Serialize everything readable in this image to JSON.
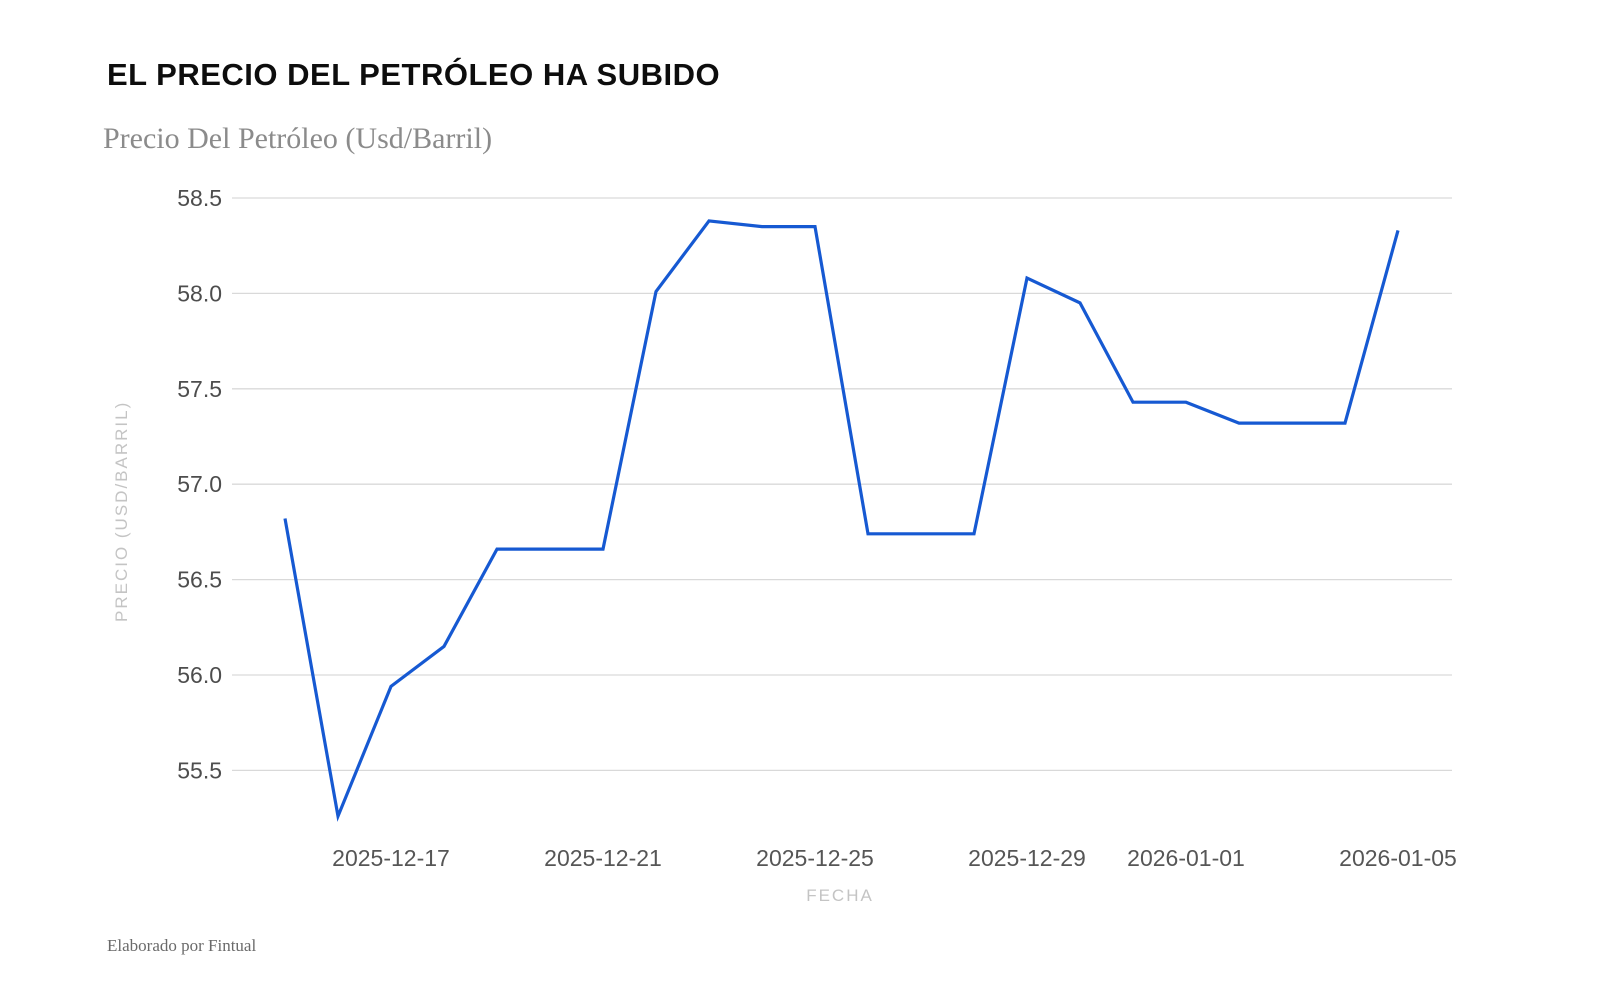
{
  "header": {
    "title": "EL PRECIO DEL PETRÓLEO HA SUBIDO"
  },
  "footer": {
    "credit": "Elaborado por Fintual"
  },
  "chart_data": {
    "type": "line",
    "title": "Precio Del Petróleo (Usd/Barril)",
    "xlabel": "FECHA",
    "ylabel": "PRECIO (USD/BARRIL)",
    "x": [
      "2025-12-15",
      "2025-12-16",
      "2025-12-17",
      "2025-12-18",
      "2025-12-19",
      "2025-12-20",
      "2025-12-21",
      "2025-12-22",
      "2025-12-23",
      "2025-12-24",
      "2025-12-25",
      "2025-12-26",
      "2025-12-27",
      "2025-12-28",
      "2025-12-29",
      "2025-12-30",
      "2025-12-31",
      "2026-01-01",
      "2026-01-02",
      "2026-01-03",
      "2026-01-04",
      "2026-01-05"
    ],
    "values": [
      56.82,
      55.26,
      55.94,
      56.15,
      56.66,
      56.66,
      56.66,
      58.01,
      58.38,
      58.35,
      58.35,
      56.74,
      56.74,
      56.74,
      58.08,
      57.95,
      57.43,
      57.43,
      57.32,
      57.32,
      57.32,
      58.33
    ],
    "yticks": [
      55.5,
      56.0,
      56.5,
      57.0,
      57.5,
      58.0,
      58.5
    ],
    "xticks": [
      "2025-12-17",
      "2025-12-21",
      "2025-12-25",
      "2025-12-29",
      "2026-01-01",
      "2026-01-05"
    ],
    "ylim": [
      55.2,
      58.6
    ],
    "xlim": [
      "2025-12-14",
      "2026-01-06"
    ],
    "grid": true,
    "legend": "none",
    "colors": {
      "line": "#1659d2",
      "gridline": "#d9d9d9",
      "ytick_text": "#4d4d4d",
      "xtick_text": "#565656",
      "axis_title_text": "#c4c4c4",
      "title_text": "#0d0d0d",
      "subtitle_text": "#8b8b8b",
      "background": "#ffffff"
    }
  }
}
